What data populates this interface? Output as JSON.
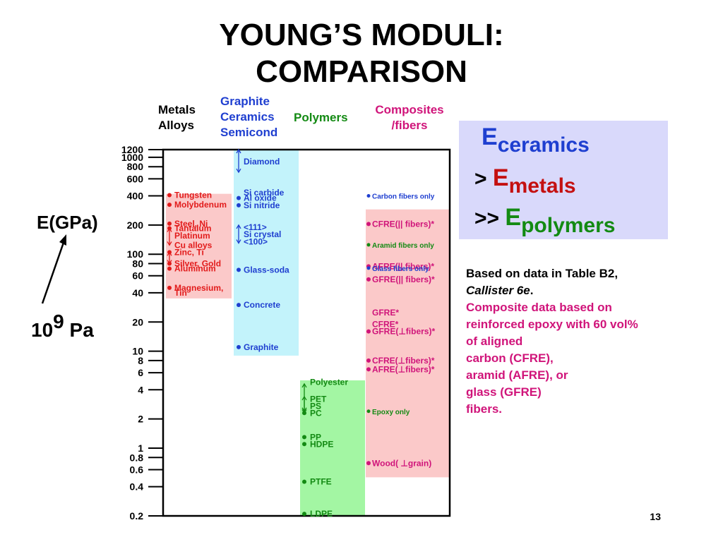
{
  "title": {
    "line1": "YOUNG’S MODULI:",
    "line2": "COMPARISON"
  },
  "column_headers": [
    {
      "lines": [
        "Metals",
        "Alloys"
      ],
      "color": "#000000"
    },
    {
      "lines": [
        "Graphite",
        "Ceramics",
        "Semicond"
      ],
      "color": "#1f3fd0"
    },
    {
      "lines": [
        "Polymers"
      ],
      "color": "#138a13"
    },
    {
      "lines": [
        "Composites",
        "/fibers"
      ],
      "color": "#d0147a"
    }
  ],
  "axis": {
    "label": "E(GPa)",
    "unit_base": "10",
    "unit_exp": "9",
    "unit_suffix": "Pa"
  },
  "summary": {
    "line1_sym": "E",
    "line1_sub": "ceramics",
    "line2_prefix": ">",
    "line2_sym": "E",
    "line2_sub": "metals",
    "line3_prefix": ">>",
    "line3_sym": "E",
    "line3_sub": "polymers",
    "colors": {
      "ceramics": "#1f3fd0",
      "metals": "#c41010",
      "polymers": "#138a13"
    }
  },
  "notes": {
    "line1": "Based on data in Table B2,",
    "line2": "Callister 6e",
    "line2_end": ".",
    "composite_lines": [
      "Composite data based on",
      "reinforced epoxy with 60 vol%",
      "of aligned",
      "carbon (CFRE),",
      "aramid (AFRE), or",
      "glass (GFRE)",
      "fibers."
    ]
  },
  "page_number": "13",
  "chart_data": {
    "type": "scatter",
    "y_scale": "log",
    "ylabel": "E(GPa)",
    "ylim": [
      0.2,
      1200
    ],
    "ytick_labels": [
      "1200",
      "1000",
      "800",
      "600",
      "400",
      "200",
      "100",
      "80",
      "60",
      "40",
      "20",
      "10",
      "8",
      "6",
      "4",
      "2",
      "1",
      "0.8",
      "0.6",
      "0.4",
      "0.2"
    ],
    "ytick_values": [
      1200,
      1000,
      800,
      600,
      400,
      200,
      100,
      80,
      60,
      40,
      20,
      10,
      8,
      6,
      4,
      2,
      1,
      0.8,
      0.6,
      0.4,
      0.2
    ],
    "bands": [
      {
        "category": "Metals Alloys",
        "color": "#fbc9c9",
        "range": [
          35,
          420
        ]
      },
      {
        "category": "Graphite Ceramics Semicond",
        "color": "#c3f3fb",
        "range": [
          9,
          1200
        ]
      },
      {
        "category": "Polymers",
        "color": "#a3f6a3",
        "range": [
          0.2,
          5
        ]
      },
      {
        "category": "Composites /fibers",
        "color": "#fbc9c9",
        "range": [
          0.5,
          290
        ]
      }
    ],
    "series": [
      {
        "name": "Metals Alloys",
        "color": "#e21b1b",
        "points": [
          {
            "label": "Tungsten",
            "value": 407,
            "dot": true
          },
          {
            "label": "Molybdenum",
            "value": 324,
            "dot": true
          },
          {
            "label": "Steel, Ni",
            "value": 207,
            "dot": true
          },
          {
            "label": "Tantalum",
            "value": 185,
            "dot": true
          },
          {
            "label": "Platinum",
            "value": 155,
            "dot": false
          },
          {
            "label": "Cu alloys",
            "value": 124,
            "dot": false
          },
          {
            "label": "Zinc, Ti",
            "value": 105,
            "dot": true
          },
          {
            "label": "Silver, Gold",
            "value": 80,
            "dot": true
          },
          {
            "label": "Aluminum",
            "value": 71,
            "dot": true
          },
          {
            "label": "Magnesium,",
            "value": 45,
            "dot": true
          },
          {
            "label": "Tin",
            "value": 40,
            "dot": false
          }
        ]
      },
      {
        "name": "Graphite Ceramics Semicond",
        "color": "#1f3fd0",
        "points": [
          {
            "label": "Diamond",
            "value": 900,
            "dot": false
          },
          {
            "label": "Si carbide",
            "value": 430,
            "dot": false
          },
          {
            "label": "Al oxide",
            "value": 380,
            "dot": true
          },
          {
            "label": "Si nitride",
            "value": 320,
            "dot": true
          },
          {
            "label": "<111>",
            "value": 190,
            "dot": false
          },
          {
            "label": "Si crystal",
            "value": 160,
            "dot": false
          },
          {
            "label": "<100>",
            "value": 135,
            "dot": false
          },
          {
            "label": "Glass-soda",
            "value": 69,
            "dot": true
          },
          {
            "label": "Concrete",
            "value": 30,
            "dot": true
          },
          {
            "label": "Graphite",
            "value": 11,
            "dot": true
          }
        ]
      },
      {
        "name": "Polymers",
        "color": "#138a13",
        "points": [
          {
            "label": "Polyester",
            "value": 4.8,
            "dot": false
          },
          {
            "label": "PET",
            "value": 3.2,
            "dot": false
          },
          {
            "label": "PS",
            "value": 2.7,
            "dot": false
          },
          {
            "label": "PC",
            "value": 2.3,
            "dot": true
          },
          {
            "label": "PP",
            "value": 1.3,
            "dot": true
          },
          {
            "label": "HDPE",
            "value": 1.1,
            "dot": true
          },
          {
            "label": "PTFE",
            "value": 0.45,
            "dot": true
          },
          {
            "label": "LDPE",
            "value": 0.21,
            "dot": true
          }
        ]
      },
      {
        "name": "Composites /fibers",
        "color": "#d0147a",
        "points": [
          {
            "label": "Carbon fibers only",
            "value": 400,
            "dot": true,
            "color": "#1f3fd0",
            "size": "small"
          },
          {
            "label": "CFRE(|| fibers)*",
            "value": 205,
            "dot": true
          },
          {
            "label": "Aramid fibers only",
            "value": 125,
            "dot": true,
            "color": "#138a13",
            "size": "small"
          },
          {
            "label": "AFRE(|| fibers)*",
            "value": 75,
            "dot": true
          },
          {
            "label": "Glass fibers only",
            "value": 72,
            "dot": true,
            "color": "#1f3fd0",
            "size": "small"
          },
          {
            "label": "GFRE(|| fibers)*",
            "value": 55,
            "dot": true
          },
          {
            "label": "GFRE*",
            "value": 25,
            "dot": false
          },
          {
            "label": "CFRE*",
            "value": 19,
            "dot": false
          },
          {
            "label": "GFRE(⊥fibers)*",
            "value": 16,
            "dot": true
          },
          {
            "label": "CFRE(⊥fibers)*",
            "value": 8,
            "dot": true
          },
          {
            "label": "AFRE(⊥fibers)*",
            "value": 6.5,
            "dot": true
          },
          {
            "label": "Epoxy only",
            "value": 2.4,
            "dot": true,
            "color": "#138a13",
            "size": "small"
          },
          {
            "label": "Wood( ⊥grain)",
            "value": 0.7,
            "dot": true
          }
        ]
      }
    ],
    "ranges": [
      {
        "series": "Metals Alloys",
        "from": 185,
        "to": 124,
        "color": "#e21b1b"
      },
      {
        "series": "Metals Alloys",
        "from": 105,
        "to": 80,
        "color": "#e21b1b"
      },
      {
        "series": "Graphite Ceramics Semicond",
        "from": 1200,
        "to": 700,
        "color": "#1f3fd0"
      },
      {
        "series": "Graphite Ceramics Semicond",
        "from": 200,
        "to": 130,
        "color": "#1f3fd0"
      },
      {
        "series": "Polymers",
        "from": 4.6,
        "to": 2.4,
        "color": "#138a13"
      },
      {
        "series": "Polymers",
        "from": 3.4,
        "to": 2.3,
        "color": "#138a13"
      }
    ]
  }
}
